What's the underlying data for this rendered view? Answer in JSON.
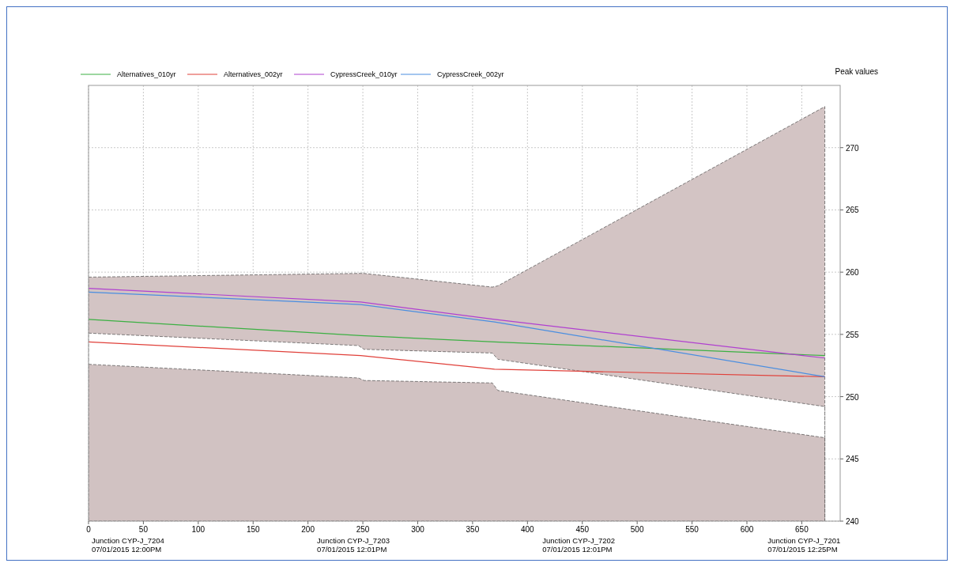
{
  "chart_data": {
    "type": "line",
    "ylabel": "Peak values",
    "legend": "top left",
    "grid": true,
    "xlim": [
      0,
      685
    ],
    "xticks": [
      0,
      50,
      100,
      150,
      200,
      250,
      300,
      350,
      400,
      450,
      500,
      550,
      600,
      650
    ],
    "ylim": [
      240,
      275
    ],
    "yticks": [
      240,
      245,
      250,
      255,
      260,
      265,
      270
    ],
    "x": [
      0,
      248,
      370,
      671
    ],
    "series": [
      {
        "type": "area",
        "color": "#d3c4c4",
        "x": [
          0,
          246,
          251,
          368,
          373,
          671
        ],
        "values": [
          259.6,
          259.9,
          259.9,
          258.8,
          258.9,
          273.3
        ]
      },
      {
        "type": "area",
        "color": "#ffffff",
        "x": [
          0,
          246,
          251,
          368,
          373,
          671
        ],
        "values": [
          255.1,
          254.1,
          253.8,
          253.5,
          253.0,
          249.2
        ]
      },
      {
        "type": "area",
        "color": "#d1c2c2",
        "x": [
          0,
          246,
          251,
          368,
          373,
          671
        ],
        "values": [
          252.6,
          251.5,
          251.3,
          251.1,
          250.5,
          246.7
        ]
      },
      {
        "name": "Alternatives_010yr",
        "color": "#3cb043",
        "values": [
          256.2,
          254.9,
          254.4,
          253.3
        ]
      },
      {
        "name": "Alternatives_002yr",
        "color": "#e0403a",
        "values": [
          254.4,
          253.3,
          252.2,
          251.6
        ]
      },
      {
        "name": "CypressCreek_010yr",
        "color": "#b040d0",
        "values": [
          258.7,
          257.6,
          256.2,
          253.1
        ]
      },
      {
        "name": "CypressCreek_002yr",
        "color": "#4a8ee0",
        "values": [
          258.4,
          257.4,
          256.0,
          251.6
        ]
      }
    ],
    "annotations": [
      "Junction CYP-J_7204\n07/01/2015 12:00PM",
      "Junction CYP-J_7203\n07/01/2015 12:01PM",
      "Junction CYP-J_7202\n07/01/2015 12:01PM",
      "Junction CYP-J_7201\n07/01/2015 12:25PM"
    ]
  }
}
